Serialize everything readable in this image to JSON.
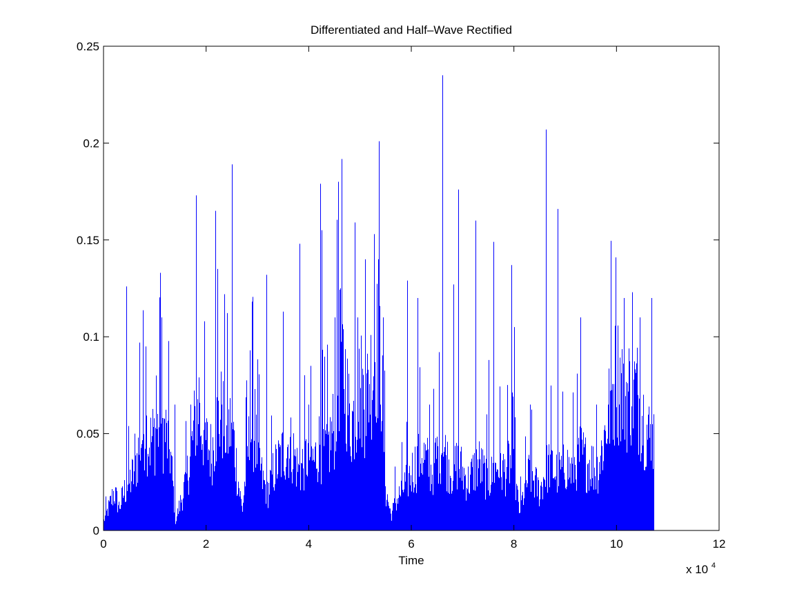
{
  "chart_data": {
    "type": "bar",
    "title": "Differentiated and Half–Wave Rectified",
    "xlabel": "Time",
    "ylabel": "",
    "x_multiplier_base": "x 10",
    "x_multiplier_exponent": "4",
    "xlim": [
      0,
      12
    ],
    "ylim": [
      0,
      0.25
    ],
    "x_ticks": [
      "0",
      "2",
      "4",
      "6",
      "8",
      "10",
      "12"
    ],
    "y_ticks": [
      "0",
      "0.05",
      "0.1",
      "0.15",
      "0.2",
      "0.25"
    ],
    "x_tick_values": [
      0,
      2,
      4,
      6,
      8,
      10,
      12
    ],
    "y_tick_values": [
      0,
      0.05,
      0.1,
      0.15,
      0.2,
      0.25
    ],
    "grid": false,
    "series_color": "#0000ff",
    "data_extent_x": [
      0,
      10.72
    ],
    "envelope": [
      [
        0.0,
        0.005
      ],
      [
        0.1,
        0.012
      ],
      [
        0.2,
        0.02
      ],
      [
        0.3,
        0.012
      ],
      [
        0.4,
        0.02
      ],
      [
        0.5,
        0.025
      ],
      [
        0.6,
        0.03
      ],
      [
        0.7,
        0.045
      ],
      [
        0.8,
        0.055
      ],
      [
        0.9,
        0.045
      ],
      [
        1.0,
        0.05
      ],
      [
        1.1,
        0.055
      ],
      [
        1.2,
        0.05
      ],
      [
        1.3,
        0.04
      ],
      [
        1.4,
        0.005
      ],
      [
        1.5,
        0.015
      ],
      [
        1.6,
        0.025
      ],
      [
        1.7,
        0.04
      ],
      [
        1.8,
        0.06
      ],
      [
        1.9,
        0.055
      ],
      [
        2.0,
        0.045
      ],
      [
        2.1,
        0.04
      ],
      [
        2.2,
        0.055
      ],
      [
        2.3,
        0.06
      ],
      [
        2.4,
        0.05
      ],
      [
        2.5,
        0.055
      ],
      [
        2.6,
        0.03
      ],
      [
        2.7,
        0.01
      ],
      [
        2.8,
        0.04
      ],
      [
        2.9,
        0.055
      ],
      [
        3.0,
        0.04
      ],
      [
        3.1,
        0.025
      ],
      [
        3.2,
        0.02
      ],
      [
        3.3,
        0.03
      ],
      [
        3.4,
        0.035
      ],
      [
        3.5,
        0.04
      ],
      [
        3.6,
        0.045
      ],
      [
        3.7,
        0.04
      ],
      [
        3.8,
        0.03
      ],
      [
        3.9,
        0.035
      ],
      [
        4.0,
        0.04
      ],
      [
        4.1,
        0.035
      ],
      [
        4.2,
        0.045
      ],
      [
        4.3,
        0.04
      ],
      [
        4.4,
        0.045
      ],
      [
        4.5,
        0.055
      ],
      [
        4.6,
        0.09
      ],
      [
        4.7,
        0.08
      ],
      [
        4.8,
        0.055
      ],
      [
        4.9,
        0.06
      ],
      [
        5.0,
        0.075
      ],
      [
        5.1,
        0.065
      ],
      [
        5.2,
        0.08
      ],
      [
        5.3,
        0.095
      ],
      [
        5.4,
        0.09
      ],
      [
        5.5,
        0.02
      ],
      [
        5.6,
        0.008
      ],
      [
        5.7,
        0.015
      ],
      [
        5.8,
        0.02
      ],
      [
        5.9,
        0.025
      ],
      [
        6.0,
        0.03
      ],
      [
        6.1,
        0.035
      ],
      [
        6.2,
        0.04
      ],
      [
        6.3,
        0.035
      ],
      [
        6.4,
        0.03
      ],
      [
        6.5,
        0.04
      ],
      [
        6.6,
        0.045
      ],
      [
        6.7,
        0.035
      ],
      [
        6.8,
        0.03
      ],
      [
        6.9,
        0.035
      ],
      [
        7.0,
        0.03
      ],
      [
        7.1,
        0.025
      ],
      [
        7.2,
        0.03
      ],
      [
        7.3,
        0.035
      ],
      [
        7.4,
        0.03
      ],
      [
        7.5,
        0.025
      ],
      [
        7.6,
        0.03
      ],
      [
        7.7,
        0.035
      ],
      [
        7.8,
        0.03
      ],
      [
        7.9,
        0.035
      ],
      [
        8.0,
        0.03
      ],
      [
        8.1,
        0.01
      ],
      [
        8.2,
        0.02
      ],
      [
        8.3,
        0.03
      ],
      [
        8.4,
        0.025
      ],
      [
        8.5,
        0.02
      ],
      [
        8.6,
        0.03
      ],
      [
        8.7,
        0.035
      ],
      [
        8.8,
        0.03
      ],
      [
        8.9,
        0.03
      ],
      [
        9.0,
        0.035
      ],
      [
        9.1,
        0.03
      ],
      [
        9.2,
        0.035
      ],
      [
        9.3,
        0.04
      ],
      [
        9.4,
        0.035
      ],
      [
        9.5,
        0.035
      ],
      [
        9.6,
        0.03
      ],
      [
        9.7,
        0.04
      ],
      [
        9.8,
        0.055
      ],
      [
        9.9,
        0.07
      ],
      [
        10.0,
        0.08
      ],
      [
        10.1,
        0.075
      ],
      [
        10.2,
        0.07
      ],
      [
        10.3,
        0.075
      ],
      [
        10.4,
        0.07
      ],
      [
        10.5,
        0.06
      ],
      [
        10.6,
        0.05
      ],
      [
        10.7,
        0.045
      ]
    ],
    "peaks": [
      [
        0.45,
        0.126
      ],
      [
        0.6,
        0.05
      ],
      [
        0.7,
        0.097
      ],
      [
        0.82,
        0.095
      ],
      [
        1.02,
        0.08
      ],
      [
        1.1,
        0.133
      ],
      [
        1.13,
        0.11
      ],
      [
        1.38,
        0.065
      ],
      [
        1.7,
        0.065
      ],
      [
        1.8,
        0.173
      ],
      [
        1.85,
        0.079
      ],
      [
        2.18,
        0.165
      ],
      [
        2.22,
        0.135
      ],
      [
        2.3,
        0.065
      ],
      [
        2.5,
        0.189
      ],
      [
        2.85,
        0.093
      ],
      [
        2.95,
        0.073
      ],
      [
        3.18,
        0.132
      ],
      [
        3.5,
        0.113
      ],
      [
        3.82,
        0.148
      ],
      [
        4.0,
        0.065
      ],
      [
        4.22,
        0.179
      ],
      [
        4.25,
        0.155
      ],
      [
        4.5,
        0.11
      ],
      [
        4.58,
        0.18
      ],
      [
        4.62,
        0.125
      ],
      [
        4.9,
        0.159
      ],
      [
        4.95,
        0.11
      ],
      [
        5.1,
        0.14
      ],
      [
        5.28,
        0.153
      ],
      [
        5.35,
        0.14
      ],
      [
        5.45,
        0.11
      ],
      [
        5.68,
        0.033
      ],
      [
        5.92,
        0.129
      ],
      [
        6.12,
        0.12
      ],
      [
        6.35,
        0.065
      ],
      [
        6.6,
        0.235
      ],
      [
        6.82,
        0.127
      ],
      [
        6.92,
        0.176
      ],
      [
        7.25,
        0.16
      ],
      [
        7.5,
        0.088
      ],
      [
        7.6,
        0.149
      ],
      [
        7.95,
        0.137
      ],
      [
        8.0,
        0.105
      ],
      [
        8.32,
        0.065
      ],
      [
        8.62,
        0.207
      ],
      [
        8.85,
        0.166
      ],
      [
        9.3,
        0.11
      ],
      [
        9.6,
        0.065
      ],
      [
        9.98,
        0.141
      ],
      [
        10.15,
        0.12
      ],
      [
        10.3,
        0.123
      ],
      [
        10.45,
        0.11
      ],
      [
        10.68,
        0.12
      ],
      [
        10.72,
        0.06
      ]
    ]
  }
}
